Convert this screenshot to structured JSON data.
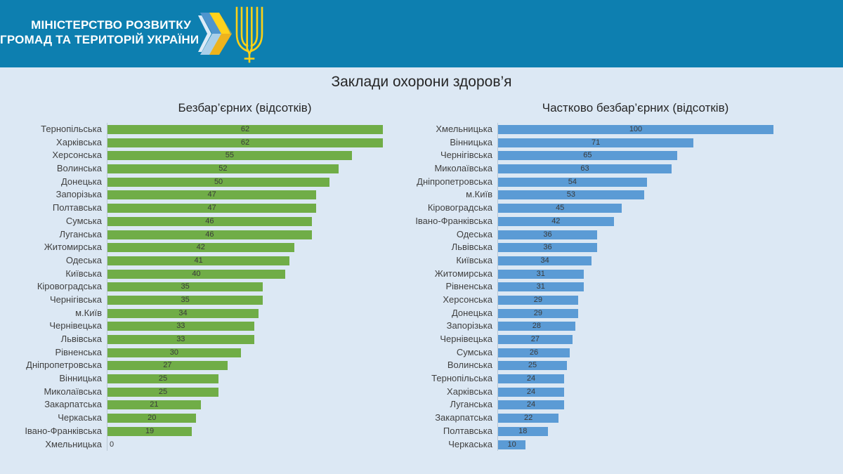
{
  "header": {
    "ministry_line1": "МІНІСТЕРСТВО РОЗВИТКУ",
    "ministry_line2": "ГРОМАД ТА ТЕРИТОРІЙ УКРАЇНИ"
  },
  "page_title": "Заклади охорони здоров’я",
  "colors": {
    "header_bg": "#0d7fb0",
    "body_bg": "#dce8f4",
    "bar_green": "#70ad47",
    "bar_blue": "#5b9bd5",
    "logo_yellow": "#fcd116",
    "logo_blue": "#4f95ce",
    "axis_line": "#bcc9d6",
    "label_text": "#404040"
  },
  "chart_data": [
    {
      "type": "bar",
      "orientation": "horizontal",
      "title": "Безбар’єрних (відсотків)",
      "color": "#70ad47",
      "xlim": [
        0,
        62
      ],
      "value_labels": true,
      "legend": "none",
      "grid": "off",
      "xlabel": "",
      "ylabel": "",
      "categories": [
        "Тернопільська",
        "Харківська",
        "Херсонська",
        "Волинська",
        "Донецька",
        "Запорізька",
        "Полтавська",
        "Сумська",
        "Луганська",
        "Житомирська",
        "Одеська",
        "Київська",
        "Кіровоградська",
        "Чернігівська",
        "м.Київ",
        "Чернівецька",
        "Львівська",
        "Рівненська",
        "Дніпропетровська",
        "Вінницька",
        "Миколаївська",
        "Закарпатська",
        "Черкаська",
        "Івано-Франківська",
        "Хмельницька"
      ],
      "values": [
        62,
        62,
        55,
        52,
        50,
        47,
        47,
        46,
        46,
        42,
        41,
        40,
        35,
        35,
        34,
        33,
        33,
        30,
        27,
        25,
        25,
        21,
        20,
        19,
        0
      ]
    },
    {
      "type": "bar",
      "orientation": "horizontal",
      "title": "Частково безбар’єрних (відсотків)",
      "color": "#5b9bd5",
      "xlim": [
        0,
        100
      ],
      "value_labels": true,
      "legend": "none",
      "grid": "off",
      "xlabel": "",
      "ylabel": "",
      "categories": [
        "Хмельницька",
        "Вінницька",
        "Чернігівська",
        "Миколаївська",
        "Дніпропетровська",
        "м.Київ",
        "Кіровоградська",
        "Івано-Франківська",
        "Одеська",
        "Львівська",
        "Київська",
        "Житомирська",
        "Рівненська",
        "Херсонська",
        "Донецька",
        "Запорізька",
        "Чернівецька",
        "Сумська",
        "Волинська",
        "Тернопільська",
        "Харківська",
        "Луганська",
        "Закарпатська",
        "Полтавська",
        "Черкаська"
      ],
      "values": [
        100,
        71,
        65,
        63,
        54,
        53,
        45,
        42,
        36,
        36,
        34,
        31,
        31,
        29,
        29,
        28,
        27,
        26,
        25,
        24,
        24,
        24,
        22,
        18,
        10
      ]
    }
  ]
}
